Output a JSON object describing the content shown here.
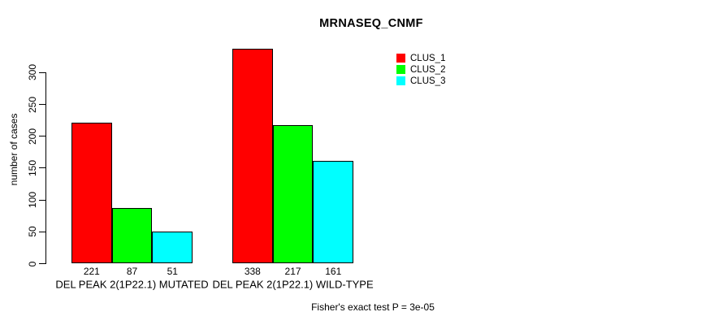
{
  "title": "MRNASEQ_CNMF",
  "chart_data": {
    "type": "bar",
    "title": "MRNASEQ_CNMF",
    "categories": [
      "DEL PEAK 2(1P22.1) MUTATED",
      "DEL PEAK 2(1P22.1) WILD-TYPE"
    ],
    "series": [
      {
        "name": "CLUS_1",
        "color": "#ff0000",
        "values": [
          221,
          338
        ]
      },
      {
        "name": "CLUS_2",
        "color": "#00ff00",
        "values": [
          87,
          217
        ]
      },
      {
        "name": "CLUS_3",
        "color": "#00ffff",
        "values": [
          51,
          161
        ]
      }
    ],
    "xlabel": "",
    "ylabel": "number of cases",
    "yticks": [
      0,
      50,
      100,
      150,
      200,
      250,
      300
    ],
    "ylim": [
      0,
      345
    ],
    "grid": false,
    "bar_value_labels_shown": true,
    "legend": {
      "position": "top-right",
      "entries": [
        "CLUS_1",
        "CLUS_2",
        "CLUS_3"
      ]
    },
    "annotation": "Fisher's exact test P = 3e-05"
  },
  "colors": {
    "background": "#ffffff",
    "bar_border": "#000000",
    "text": "#000000",
    "clus_1": "#ff0000",
    "clus_2": "#00ff00",
    "clus_3": "#00ffff"
  }
}
